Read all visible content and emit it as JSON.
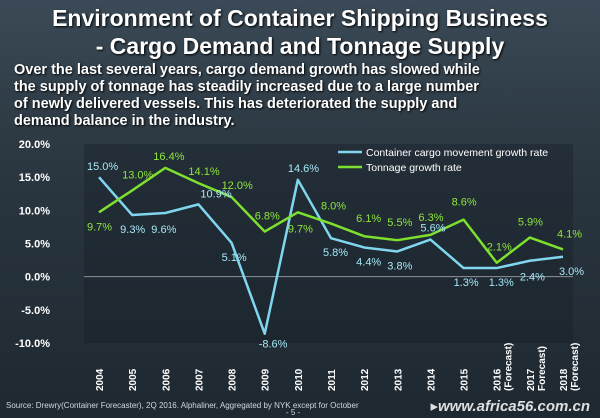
{
  "title_line1": "Environment of Container Shipping Business",
  "title_line2": "- Cargo Demand and Tonnage Supply",
  "intro_lines": [
    "Over the last several years, cargo demand growth has slowed while",
    "the supply of tonnage has steadily increased due to a large number",
    "of newly delivered vessels.  This has deteriorated the supply and",
    "demand balance in the industry."
  ],
  "chart_data": {
    "type": "line",
    "categories": [
      "2004",
      "2005",
      "2006",
      "2007",
      "2008",
      "2009",
      "2010",
      "2011",
      "2012",
      "2013",
      "2014",
      "2015",
      "2016 (Forecast)",
      "2017 (Forecast)",
      "2018 (Forecast)"
    ],
    "category_lines": [
      [
        "2004"
      ],
      [
        "2005"
      ],
      [
        "2006"
      ],
      [
        "2007"
      ],
      [
        "2008"
      ],
      [
        "2009"
      ],
      [
        "2010"
      ],
      [
        "2011"
      ],
      [
        "2012"
      ],
      [
        "2013"
      ],
      [
        "2014"
      ],
      [
        "2015"
      ],
      [
        "2016",
        "(Forecast)"
      ],
      [
        "2017",
        "Forecast)"
      ],
      [
        "2018",
        "(Forecast)"
      ]
    ],
    "series": [
      {
        "name": "Container cargo movement growth rate",
        "color": "#7fd6ee",
        "values": [
          15.0,
          9.3,
          9.6,
          10.9,
          5.1,
          -8.6,
          14.6,
          5.8,
          4.4,
          3.8,
          5.6,
          1.3,
          1.3,
          2.4,
          3.0
        ],
        "labels": [
          "15.0%",
          "9.3%",
          "9.6%",
          "10.9%",
          "5.1%",
          "-8.6%",
          "14.6%",
          "5.8%",
          "4.4%",
          "3.8%",
          "5.6%",
          "1.3%",
          "1.3%",
          "2.4%",
          "3.0%"
        ]
      },
      {
        "name": "Tonnage growth rate",
        "color": "#7ee02e",
        "values": [
          9.7,
          13.0,
          16.4,
          14.1,
          12.0,
          6.8,
          9.7,
          8.0,
          6.1,
          5.5,
          6.3,
          8.6,
          2.1,
          5.9,
          4.1
        ],
        "labels": [
          "9.7%",
          "13.0%",
          "16.4%",
          "14.1%",
          "12.0%",
          "6.8%",
          "9.7%",
          "8.0%",
          "6.1%",
          "5.5%",
          "6.3%",
          "8.6%",
          "2.1%",
          "5.9%",
          "4.1%"
        ]
      }
    ],
    "ylim": [
      -10,
      20
    ],
    "yticks": [
      -10,
      -5,
      0,
      5,
      10,
      15,
      20
    ],
    "ytick_labels": [
      "-10.0%",
      "-5.0%",
      "0.0%",
      "5.0%",
      "10.0%",
      "15.0%",
      "20.0%"
    ],
    "legend_position": "top-right",
    "grid": false
  },
  "source_text": "Source: Drewry(Container Forecaster), 2Q 2016. Alphaliner, Aggregated by NYK except for October",
  "page_number": "- 5 -",
  "watermark": "www.africa56.com.cn"
}
